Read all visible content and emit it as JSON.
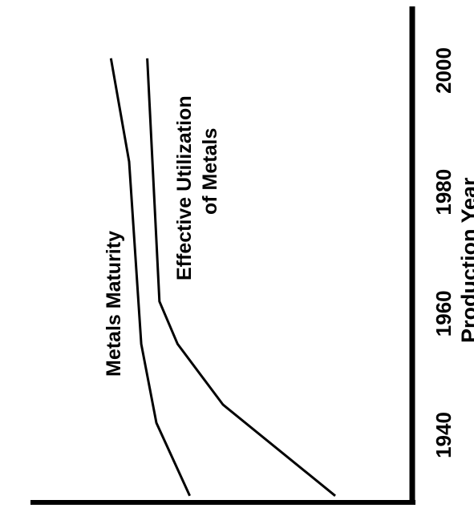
{
  "chart_data": {
    "type": "line",
    "orientation": "rotated-90-ccw",
    "title": "",
    "xlabel": "Production Year",
    "ylabel": "",
    "x_ticks": [
      1940,
      1960,
      1980,
      2000
    ],
    "xlim": [
      1930,
      2005
    ],
    "ylim": [
      0,
      100
    ],
    "grid": false,
    "legend": "none",
    "series": [
      {
        "name": "Metals Maturity",
        "x": [
          1930,
          1942,
          1955,
          1985,
          2002
        ],
        "y": [
          48,
          59,
          64,
          68,
          74
        ]
      },
      {
        "name": "Effective Utilization of Metals",
        "x": [
          1930,
          1945,
          1955,
          1962,
          2002
        ],
        "y": [
          0,
          37,
          52,
          58,
          62
        ]
      }
    ],
    "labels": {
      "x_tick_labels": [
        "1940",
        "1960",
        "1980",
        "2000"
      ],
      "series_1_label": "Metals Maturity",
      "series_2_label_line1": "Effective Utilization",
      "series_2_label_line2": "of Metals"
    }
  }
}
